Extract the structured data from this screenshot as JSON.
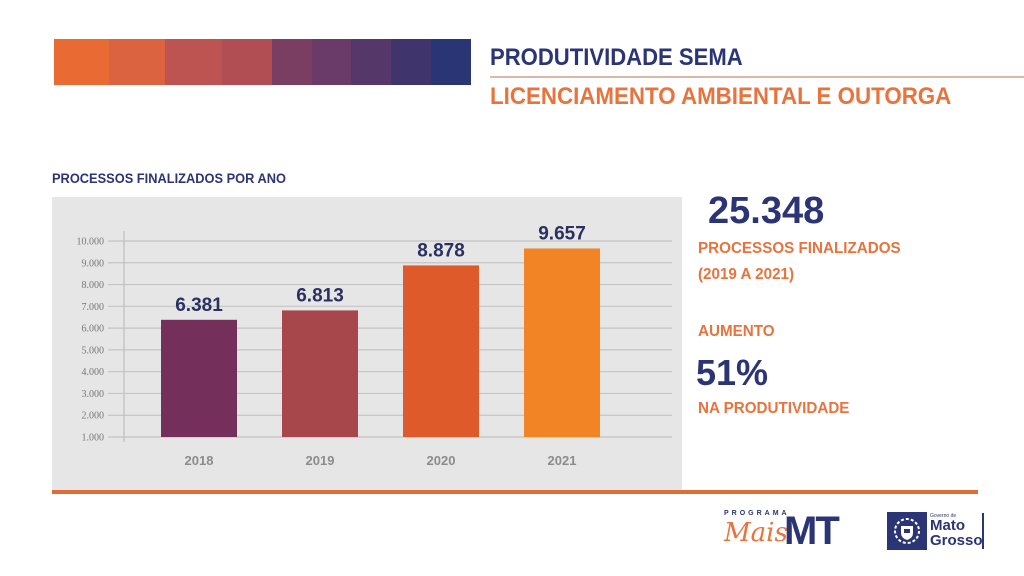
{
  "header": {
    "title": "PRODUTIVIDADE SEMA",
    "subtitle": "LICENCIAMENTO AMBIENTAL E OUTORGA",
    "swatch_colors": [
      "#e96b33",
      "#db6340",
      "#be5451",
      "#b04e54",
      "#7a3e62",
      "#6a3b68",
      "#553869",
      "#3f356c",
      "#293574"
    ]
  },
  "colors": {
    "navy": "#2b3576",
    "orange": "#e8733c",
    "panel": "#e6e6e6"
  },
  "stats": {
    "total_value": "25.348",
    "total_label": "PROCESSOS FINALIZADOS",
    "total_period": "(2019 A 2021)",
    "increase_label": "AUMENTO",
    "increase_value": "51%",
    "increase_suffix": "NA PRODUTIVIDADE"
  },
  "logos": {
    "programa": "PROGRAMA",
    "mais": "Mais",
    "mt": "MT",
    "governo_de": "Governo de",
    "mato": "Mato",
    "grosso": "Grosso"
  },
  "chart_data": {
    "type": "bar",
    "title": "PROCESSOS FINALIZADOS POR ANO",
    "categories": [
      "2018",
      "2019",
      "2020",
      "2021"
    ],
    "values": [
      6381,
      6813,
      8878,
      9657
    ],
    "value_labels": [
      "6.381",
      "6.813",
      "8.878",
      "9.657"
    ],
    "bar_colors": [
      "#74305a",
      "#a8474b",
      "#df5a2a",
      "#f28426"
    ],
    "xlabel": "",
    "ylabel": "",
    "ylim": [
      0,
      10000
    ],
    "yticks": [
      1000,
      2000,
      3000,
      4000,
      5000,
      6000,
      7000,
      8000,
      9000,
      10000
    ],
    "ytick_labels": [
      "1.000",
      "2.000",
      "3.000",
      "4.000",
      "5.000",
      "6.000",
      "7.000",
      "8.000",
      "9.000",
      "10.000"
    ],
    "grid": true,
    "legend": "none"
  }
}
